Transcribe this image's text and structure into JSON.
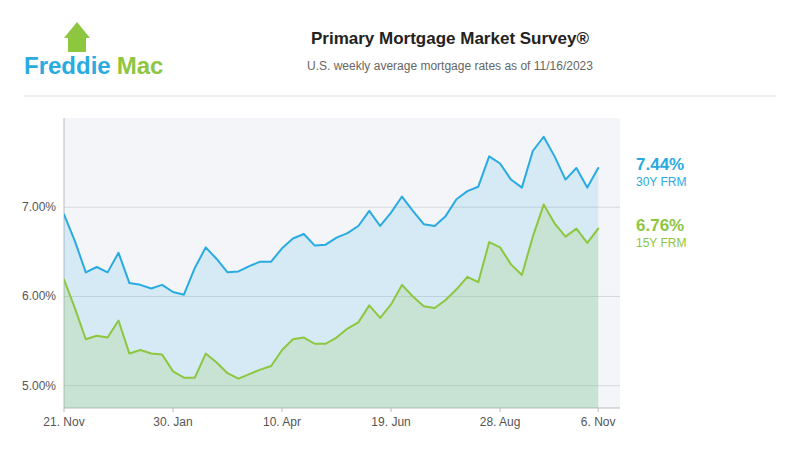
{
  "chart_data": {
    "type": "area",
    "title": "Primary Mortgage Market Survey®",
    "subtitle": "U.S. weekly average mortgage rates as of 11/16/2023",
    "x": [
      0,
      1,
      2,
      3,
      4,
      5,
      6,
      7,
      8,
      9,
      10,
      11,
      12,
      13,
      14,
      15,
      16,
      17,
      18,
      19,
      20,
      21,
      22,
      23,
      24,
      25,
      26,
      27,
      28,
      29,
      30,
      31,
      32,
      33,
      34,
      35,
      36,
      37,
      38,
      39,
      40,
      41,
      42,
      43,
      44,
      45,
      46,
      47,
      48,
      49
    ],
    "xlim": [
      0,
      51
    ],
    "xticks": [
      {
        "value": 0,
        "label": "21. Nov"
      },
      {
        "value": 10,
        "label": "30. Jan"
      },
      {
        "value": 20,
        "label": "10. Apr"
      },
      {
        "value": 30,
        "label": "19. Jun"
      },
      {
        "value": 40,
        "label": "28. Aug"
      },
      {
        "value": 49,
        "label": "6. Nov"
      }
    ],
    "ylim": [
      4.75,
      8.0
    ],
    "yticks": [
      {
        "value": 5.0,
        "label": "5.00%"
      },
      {
        "value": 6.0,
        "label": "6.00%"
      },
      {
        "value": 7.0,
        "label": "7.00%"
      }
    ],
    "grid": true,
    "series": [
      {
        "name": "30Y FRM",
        "color": "#29ABE2",
        "values": [
          6.92,
          6.62,
          6.27,
          6.33,
          6.27,
          6.49,
          6.15,
          6.13,
          6.09,
          6.13,
          6.05,
          6.02,
          6.32,
          6.55,
          6.42,
          6.27,
          6.28,
          6.34,
          6.39,
          6.39,
          6.54,
          6.65,
          6.7,
          6.57,
          6.58,
          6.66,
          6.71,
          6.79,
          6.96,
          6.79,
          6.94,
          7.12,
          6.96,
          6.81,
          6.79,
          6.9,
          7.09,
          7.18,
          7.23,
          7.57,
          7.49,
          7.31,
          7.22,
          7.63,
          7.79,
          7.57,
          7.31,
          7.44,
          7.22,
          7.44
        ]
      },
      {
        "name": "15Y FRM",
        "color": "#8DC63F",
        "values": [
          6.19,
          5.87,
          5.52,
          5.56,
          5.54,
          5.73,
          5.36,
          5.4,
          5.36,
          5.35,
          5.16,
          5.09,
          5.09,
          5.36,
          5.26,
          5.14,
          5.08,
          5.13,
          5.18,
          5.22,
          5.4,
          5.52,
          5.54,
          5.47,
          5.47,
          5.54,
          5.64,
          5.71,
          5.9,
          5.76,
          5.91,
          6.13,
          6.0,
          5.89,
          5.87,
          5.96,
          6.08,
          6.22,
          6.16,
          6.61,
          6.55,
          6.36,
          6.24,
          6.67,
          7.03,
          6.82,
          6.67,
          6.76,
          6.6,
          6.76
        ]
      }
    ],
    "annotations": [
      {
        "text": "Freddie",
        "color": "#29ABE2"
      },
      {
        "text": "Mac",
        "color": "#8DC63F"
      },
      {
        "text": "7.44%",
        "color": "#29ABE2"
      },
      {
        "text": "6.76%",
        "color": "#8DC63F"
      }
    ]
  }
}
